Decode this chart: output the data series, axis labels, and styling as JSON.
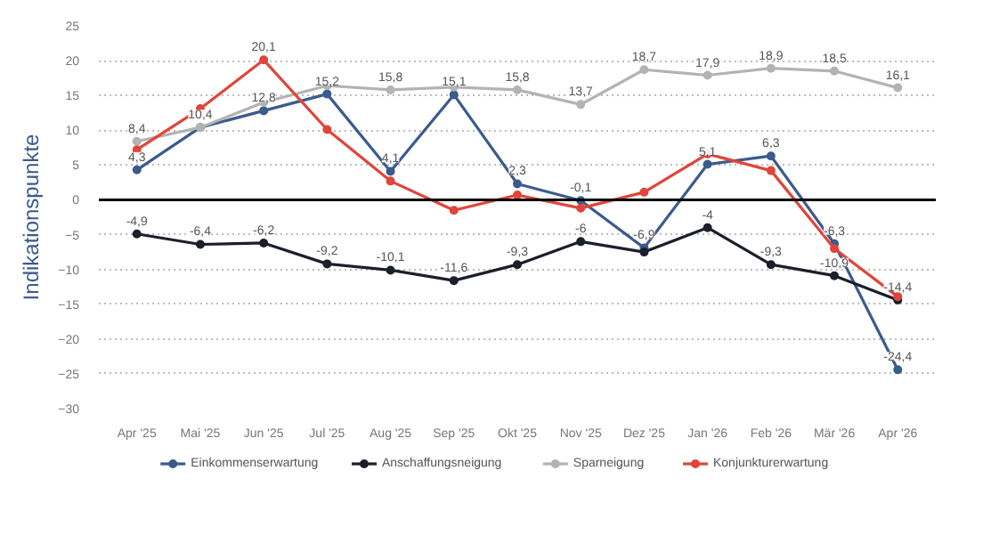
{
  "chart_data": {
    "type": "line",
    "ylabel": "Indikationspunkte",
    "categories": [
      "Apr '25",
      "Mai '25",
      "Jun '25",
      "Jul '25",
      "Aug '25",
      "Sep '25",
      "Okt '25",
      "Nov '25",
      "Dez '25",
      "Jan '26",
      "Feb '26",
      "Mär '26",
      "Apr '26"
    ],
    "ylim": [
      -30,
      25
    ],
    "yticks": [
      -30,
      -25,
      -20,
      -15,
      -10,
      -5,
      0,
      5,
      10,
      15,
      20,
      25
    ],
    "grid": "y",
    "legend": "bottom",
    "marker": "circle",
    "line_style": "solid",
    "ref_lines": [
      {
        "axis": "y",
        "value": 0,
        "color": "#000000"
      }
    ],
    "series": [
      {
        "name": "Einkommenserwartung",
        "color": "#3b5b8c",
        "values": [
          4.3,
          10.4,
          12.8,
          15.2,
          4.1,
          15.1,
          2.3,
          -0.1,
          -6.9,
          5.1,
          6.3,
          -6.3,
          -24.4
        ],
        "value_labels": [
          "4,3",
          "10,4",
          "12,8",
          "15,2",
          "4,1",
          "15,1",
          "2,3",
          "-0,1",
          "-6,9",
          "5,1",
          "6,3",
          "-6,3",
          "-24,4"
        ]
      },
      {
        "name": "Anschaffungsneigung",
        "color": "#1a1f2b",
        "values": [
          -4.9,
          -6.4,
          -6.2,
          -9.2,
          -10.1,
          -11.6,
          -9.3,
          -6,
          -7.5,
          -4,
          -9.3,
          -10.9,
          -14.4
        ],
        "value_labels": [
          "-4,9",
          "-6,4",
          "-6,2",
          "-9,2",
          "-10,1",
          "-11,6",
          "-9,3",
          "-6",
          null,
          "-4",
          "-9,3",
          "-10,9",
          "-14,4"
        ]
      },
      {
        "name": "Sparneigung",
        "color": "#b3b3b3",
        "values": [
          8.4,
          10.4,
          14,
          16.4,
          15.8,
          16.2,
          15.8,
          13.7,
          18.7,
          17.9,
          18.9,
          18.5,
          16.1
        ],
        "value_labels": [
          "8,4",
          null,
          null,
          null,
          "15,8",
          null,
          "15,8",
          "13,7",
          "18,7",
          "17,9",
          "18,9",
          "18,5",
          "16,1"
        ]
      },
      {
        "name": "Konjunkturerwartung",
        "color": "#e0453a",
        "values": [
          7.2,
          13.1,
          20.1,
          10.1,
          2.7,
          -1.5,
          0.7,
          -1.2,
          1.1,
          6.6,
          4.2,
          -7,
          -13.9
        ],
        "value_labels": [
          null,
          null,
          "20,1",
          null,
          null,
          null,
          null,
          null,
          null,
          null,
          null,
          null,
          null
        ]
      }
    ]
  }
}
